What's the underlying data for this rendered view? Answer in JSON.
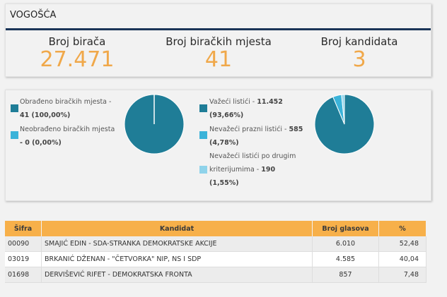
{
  "header": {
    "title": "VOGOŠĆA"
  },
  "stats": [
    {
      "label": "Broj birača",
      "value": "27.471"
    },
    {
      "label": "Broj biračkih mjesta",
      "value": "41"
    },
    {
      "label": "Broj kandidata",
      "value": "3"
    }
  ],
  "colors": {
    "dark": "#1f7d97",
    "medium": "#3bb3d9",
    "light": "#8fd3ea",
    "accent": "#f0a84a",
    "header_row": "#f7b04a"
  },
  "stations": {
    "legend": [
      {
        "text": "Obrađeno biračkih mjesta - ",
        "value": "41 (100,00%)"
      },
      {
        "text": "Neobrađeno biračkih mjesta ",
        "value": "- 0 (0,00%)"
      }
    ],
    "percents": [
      100,
      0
    ]
  },
  "ballots": {
    "legend": [
      {
        "text": "Važeći listići - ",
        "value": "11.452",
        "pct": "(93,66%)"
      },
      {
        "text": "Nevažeći prazni listići - ",
        "value": "585",
        "pct": "(4,78%)"
      },
      {
        "text": "Nevažeći listići po drugim",
        "text2": "kriterijumima - ",
        "value": "190",
        "pct": "(1,55%)"
      }
    ],
    "percents": [
      93.66,
      4.78,
      1.55
    ]
  },
  "table": {
    "headers": [
      "Šifra",
      "Kandidat",
      "Broj glasova",
      "%"
    ],
    "rows": [
      [
        "00090",
        "SMAJIĆ EDIN - SDA-STRANKA DEMOKRATSKE AKCIJE",
        "6.010",
        "52,48"
      ],
      [
        "03019",
        "BRKANIĆ DŽENAN - \"ČETVORKA\" NIP, NS I SDP",
        "4.585",
        "40,04"
      ],
      [
        "01698",
        "DERVIŠEVIĆ RIFET - DEMOKRATSKA FRONTA",
        "857",
        "7,48"
      ]
    ]
  }
}
